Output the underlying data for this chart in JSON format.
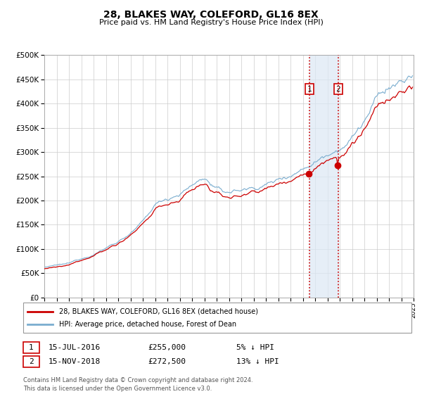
{
  "title": "28, BLAKES WAY, COLEFORD, GL16 8EX",
  "subtitle": "Price paid vs. HM Land Registry's House Price Index (HPI)",
  "legend_line1": "28, BLAKES WAY, COLEFORD, GL16 8EX (detached house)",
  "legend_line2": "HPI: Average price, detached house, Forest of Dean",
  "transaction1_date": "15-JUL-2016",
  "transaction1_price": "£255,000",
  "transaction1_hpi": "5% ↓ HPI",
  "transaction1_year": 2016.54,
  "transaction1_value": 255000,
  "transaction2_date": "15-NOV-2018",
  "transaction2_price": "£272,500",
  "transaction2_hpi": "13% ↓ HPI",
  "transaction2_year": 2018.875,
  "transaction2_value": 272500,
  "footer_line1": "Contains HM Land Registry data © Crown copyright and database right 2024.",
  "footer_line2": "This data is licensed under the Open Government Licence v3.0.",
  "red_color": "#cc0000",
  "blue_color": "#7aadcf",
  "shade_color": "#dce8f5",
  "ylim_min": 0,
  "ylim_max": 500000,
  "xmin": 1995,
  "xmax": 2025
}
